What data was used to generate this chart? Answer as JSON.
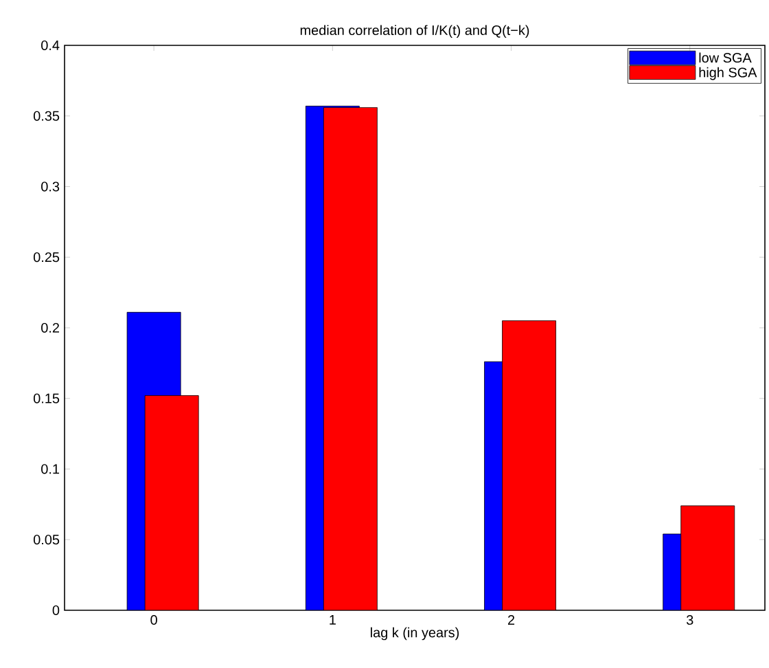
{
  "chart_data": {
    "type": "bar",
    "title": "median correlation of I/K(t) and Q(t−k)",
    "xlabel": "lag k (in years)",
    "categories": [
      "0",
      "1",
      "2",
      "3"
    ],
    "series": [
      {
        "name": "low SGA",
        "color": "#0000ff",
        "values": [
          0.211,
          0.357,
          0.176,
          0.054
        ]
      },
      {
        "name": "high SGA",
        "color": "#ff0000",
        "values": [
          0.152,
          0.356,
          0.205,
          0.074
        ]
      }
    ],
    "ylim": [
      0,
      0.4
    ],
    "yticks": [
      0,
      0.05,
      0.1,
      0.15,
      0.2,
      0.25,
      0.3,
      0.35,
      0.4
    ],
    "legend": "top right"
  }
}
